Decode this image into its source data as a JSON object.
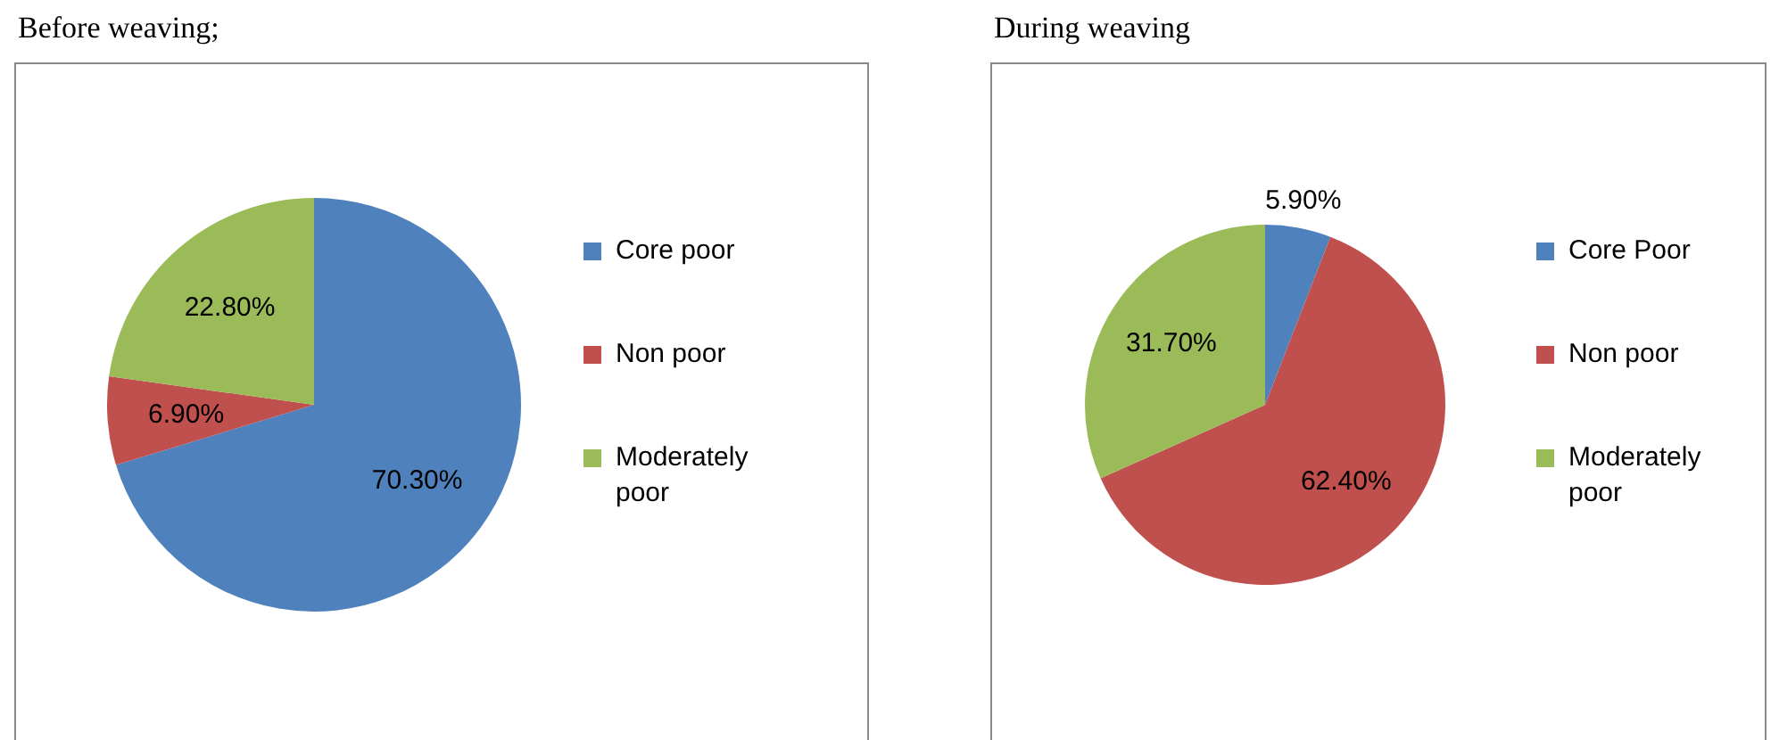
{
  "chart_data": [
    {
      "type": "pie",
      "title": "Before weaving;",
      "categories": [
        "Core poor",
        "Non poor",
        "Moderately poor"
      ],
      "values": [
        70.3,
        6.9,
        22.8
      ],
      "colors": [
        "#4f81bd",
        "#c0504d",
        "#9bbb59"
      ],
      "value_labels": [
        "70.30%",
        "6.90%",
        "22.80%"
      ],
      "legend": "right"
    },
    {
      "type": "pie",
      "title": "During weaving",
      "categories": [
        "Core Poor",
        "Non poor",
        "Moderately poor"
      ],
      "values": [
        5.9,
        62.4,
        31.7
      ],
      "colors": [
        "#4f81bd",
        "#c0504d",
        "#9bbb59"
      ],
      "value_labels": [
        "5.90%",
        "62.40%",
        "31.70%"
      ],
      "legend": "right"
    }
  ]
}
